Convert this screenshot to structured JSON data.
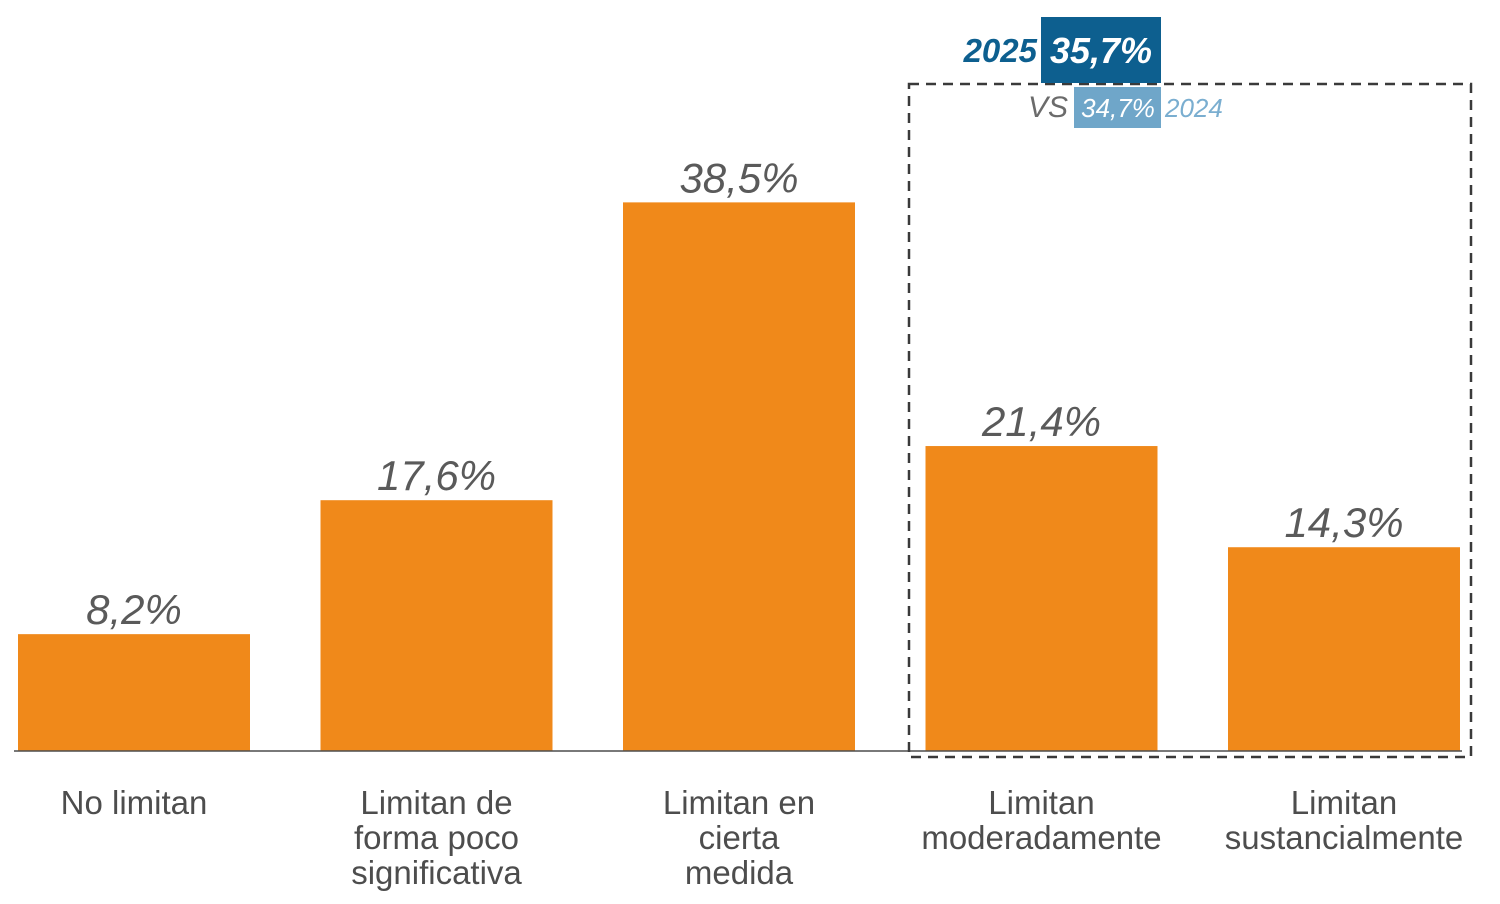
{
  "chart_data": {
    "type": "bar",
    "categories": [
      [
        "No limitan"
      ],
      [
        "Limitan de",
        "forma poco",
        "significativa"
      ],
      [
        "Limitan en",
        "cierta",
        "medida"
      ],
      [
        "Limitan",
        "moderadamente"
      ],
      [
        "Limitan",
        "sustancialmente"
      ]
    ],
    "values": [
      8.2,
      17.6,
      38.5,
      21.4,
      14.3
    ],
    "value_labels": [
      "8,2%",
      "17,6%",
      "38,5%",
      "21,4%",
      "14,3%"
    ],
    "ylim": [
      0,
      40
    ],
    "grid": false,
    "title": "",
    "xlabel": "",
    "ylabel": "",
    "bar_color": "#f0891a",
    "highlight": {
      "categories_highlighted": [
        3,
        4
      ],
      "year_current": "2025",
      "value_current": "35,7%",
      "vs_label": "VS",
      "value_previous": "34,7%",
      "year_previous": "2024",
      "color_current": "#0d5f8f",
      "color_previous": "#6fa6c9"
    }
  }
}
